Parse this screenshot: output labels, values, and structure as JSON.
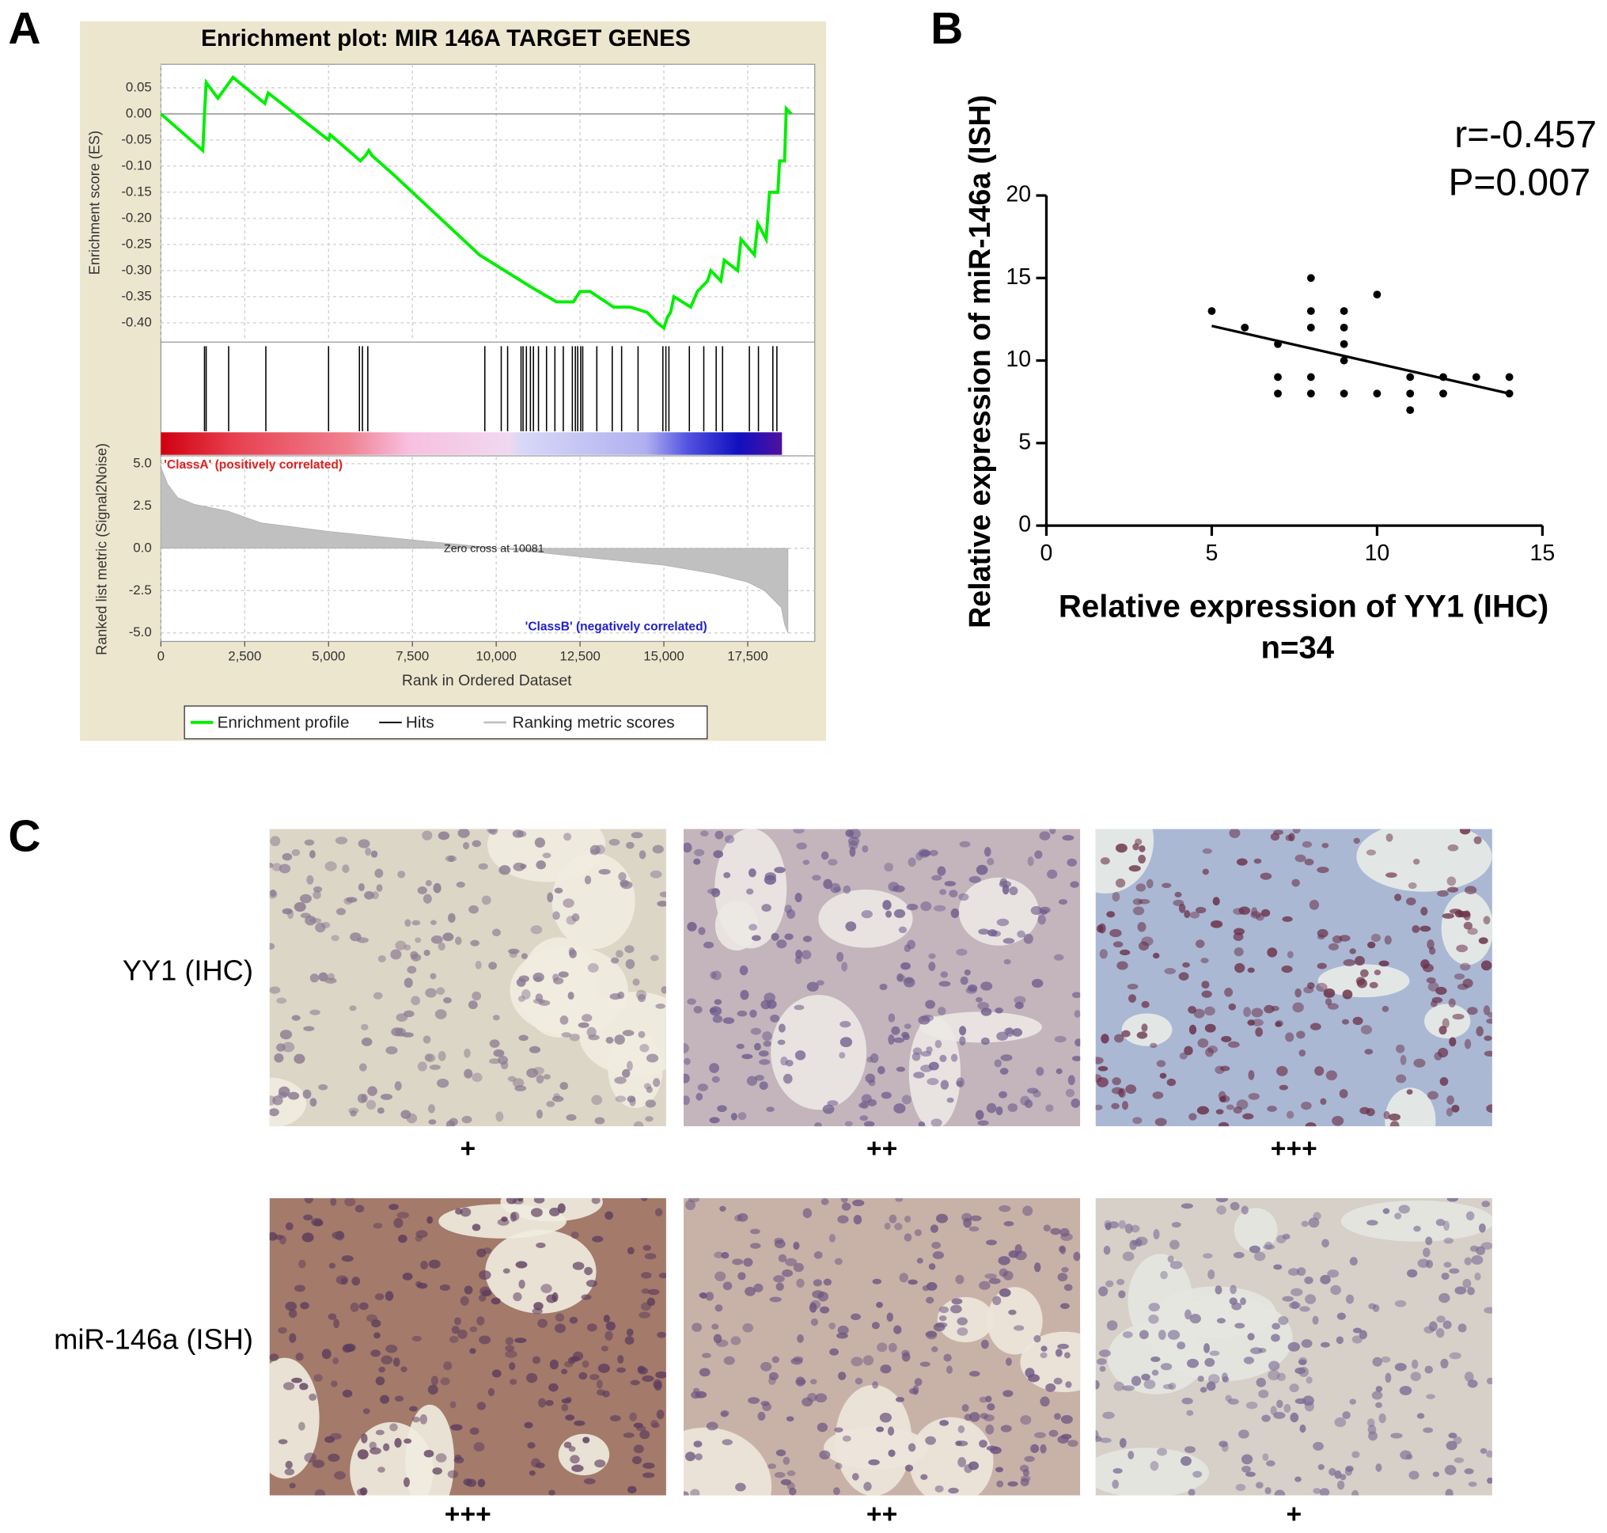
{
  "panel_labels": [
    "A",
    "B",
    "C"
  ],
  "chart_data": [
    {
      "type": "line",
      "title": "Enrichment plot: MIR 146A TARGET GENES",
      "y_label": "Enrichment score (ES)",
      "x": [
        0,
        1250,
        1300,
        1350,
        1700,
        2150,
        3100,
        3200,
        5000,
        5050,
        5950,
        6100,
        6200,
        6300,
        7000,
        9500,
        11000,
        11800,
        12300,
        12500,
        12800,
        13500,
        14000,
        14500,
        14800,
        15000,
        15100,
        15200,
        15300,
        15800,
        16000,
        16300,
        16400,
        16700,
        16800,
        17200,
        17300,
        17700,
        17800,
        18050,
        18150,
        18400,
        18450,
        18600,
        18650,
        18800
      ],
      "series": [
        {
          "name": "Enrichment profile",
          "color": "#00ee00",
          "values": [
            0,
            -0.07,
            0,
            0.06,
            0.03,
            0.07,
            0.02,
            0.04,
            -0.05,
            -0.04,
            -0.09,
            -0.08,
            -0.07,
            -0.08,
            -0.12,
            -0.27,
            -0.33,
            -0.36,
            -0.36,
            -0.34,
            -0.34,
            -0.37,
            -0.37,
            -0.38,
            -0.4,
            -0.41,
            -0.39,
            -0.38,
            -0.35,
            -0.37,
            -0.34,
            -0.32,
            -0.3,
            -0.32,
            -0.28,
            -0.3,
            -0.24,
            -0.27,
            -0.21,
            -0.24,
            -0.15,
            -0.15,
            -0.09,
            -0.09,
            0.01,
            0
          ]
        }
      ],
      "hits": {
        "name": "Hits",
        "color": "#000000",
        "x": [
          1300,
          1350,
          2020,
          3130,
          5000,
          5920,
          6010,
          6170,
          9660,
          10150,
          10340,
          10740,
          10800,
          10900,
          11020,
          11110,
          11260,
          11500,
          11750,
          12000,
          12270,
          12360,
          12430,
          12520,
          12580,
          13000,
          13460,
          13740,
          14230,
          14970,
          15060,
          15150,
          15760,
          16190,
          16560,
          16750,
          17550,
          17820,
          18250,
          18370
        ]
      },
      "xlim": [
        0,
        19500
      ],
      "ylim": [
        -0.435,
        0.095
      ],
      "yticks": [
        0.05,
        {
          "value": 0,
          "label": "0.00"
        },
        -0.05,
        {
          "value": -0.1,
          "label": "-0.10"
        },
        -0.15,
        {
          "value": -0.2,
          "label": "-0.20"
        },
        -0.25,
        {
          "value": -0.3,
          "label": "-0.30"
        },
        -0.35,
        {
          "value": -0.4,
          "label": "-0.40"
        }
      ],
      "grid": true
    },
    {
      "type": "area",
      "y_label": "Ranked list metric (Signal2Noise)",
      "x_label": "Rank in Ordered Dataset",
      "x": [
        0,
        200,
        500,
        1000,
        2000,
        3000,
        5000,
        7500,
        10081,
        12500,
        15000,
        16500,
        17500,
        18000,
        18500,
        18600,
        18700
      ],
      "series": [
        {
          "name": "Ranking metric scores",
          "color": "#c0c0c0",
          "values": [
            4.8,
            3.8,
            3,
            2.6,
            2.2,
            1.5,
            1,
            0.5,
            0,
            -0.5,
            -1,
            -1.5,
            -2,
            -2.5,
            -3.5,
            -4.5,
            -5
          ]
        }
      ],
      "xlim": [
        0,
        19500
      ],
      "ylim": [
        -5.5,
        5.4
      ],
      "xticks": [
        0,
        {
          "value": 2500,
          "label": "2,500"
        },
        {
          "value": 5000,
          "label": "5,000"
        },
        {
          "value": 7500,
          "label": "7,500"
        },
        {
          "value": 10000,
          "label": "10,000"
        },
        {
          "value": 12500,
          "label": "12,500"
        },
        {
          "value": 15000,
          "label": "15,000"
        },
        {
          "value": 17500,
          "label": "17,500"
        }
      ],
      "yticks": [
        {
          "value": 5,
          "label": "5.0"
        },
        2.5,
        {
          "value": 0,
          "label": "0.0"
        },
        -2.5,
        {
          "value": -5,
          "label": "-5.0"
        }
      ],
      "annotations": [
        "'ClassA' (positively correlated)",
        "'ClassB' (negatively correlated)",
        "Zero cross at 10081"
      ],
      "grid": true
    },
    {
      "type": "scatter",
      "x_label": "Relative expression of YY1 (IHC)",
      "subtitle": "n=34",
      "y_label": "Relative expression of miR-146a (ISH)",
      "annotations": [
        "r=-0.457",
        "P=0.007"
      ],
      "x": [
        5,
        6,
        7,
        7,
        7,
        8,
        8,
        8,
        8,
        8,
        9,
        9,
        9,
        9,
        9,
        10,
        10,
        11,
        11,
        11,
        12,
        12,
        13,
        14,
        14
      ],
      "y": [
        13,
        12,
        11,
        9,
        8,
        15,
        13,
        12,
        9,
        8,
        13,
        12,
        11,
        10,
        8,
        14,
        8,
        9,
        8,
        7,
        9,
        8,
        9,
        9,
        8
      ],
      "color": "#000000",
      "fit": {
        "x": [
          5,
          14
        ],
        "y": [
          12.1,
          8
        ]
      },
      "xlim": [
        0,
        15
      ],
      "ylim": [
        0,
        20
      ],
      "xticks": [
        0,
        5,
        10,
        15
      ],
      "yticks": [
        0,
        5,
        10,
        15,
        20
      ]
    }
  ],
  "figure_c": {
    "rows": [
      {
        "label": "YY1 (IHC)",
        "scores": [
          "+",
          "++",
          "+++"
        ]
      },
      {
        "label": "miR-146a (ISH)",
        "scores": [
          "+++",
          "++",
          "+"
        ]
      }
    ]
  }
}
